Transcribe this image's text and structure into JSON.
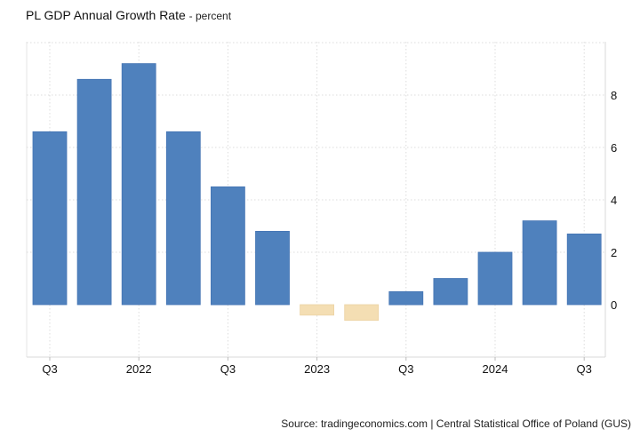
{
  "header": {
    "title": "PL GDP Annual Growth Rate",
    "subtitle": "percent"
  },
  "footer": {
    "source": "Source: tradingeconomics.com | Central Statistical Office of Poland (GUS)"
  },
  "chart_data": {
    "type": "bar",
    "title": "PL GDP Annual Growth Rate",
    "ylabel": "",
    "xlabel": "",
    "categories": [
      "2021 Q3",
      "2021 Q4",
      "2022 Q1",
      "2022 Q2",
      "2022 Q3",
      "2022 Q4",
      "2023 Q1",
      "2023 Q2",
      "2023 Q3",
      "2023 Q4",
      "2024 Q1",
      "2024 Q2",
      "2024 Q3"
    ],
    "values": [
      6.6,
      8.6,
      9.2,
      6.6,
      4.5,
      2.8,
      -0.4,
      -0.6,
      0.5,
      1.0,
      2.0,
      3.2,
      2.7
    ],
    "x_tick_labels": [
      "Q3",
      "2022",
      "Q3",
      "2023",
      "Q3",
      "2024",
      "Q3"
    ],
    "y_ticks": [
      0,
      2,
      4,
      6,
      8
    ],
    "ylim": [
      -2,
      10
    ],
    "grid": true,
    "colors": {
      "positive": "#4f81bd",
      "negative": "#f4deb3"
    }
  }
}
